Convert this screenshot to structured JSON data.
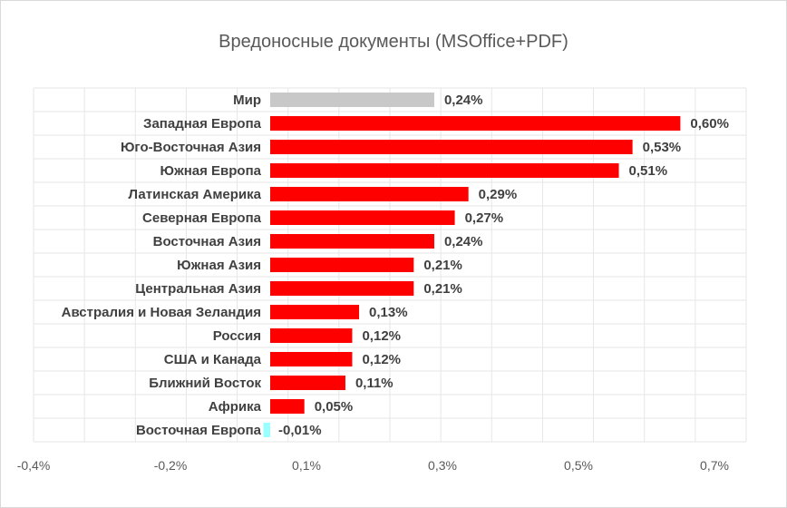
{
  "chart_data": {
    "type": "bar",
    "orientation": "horizontal",
    "title": "Вредоносные документы (MSOffice+PDF)",
    "categories": [
      "Мир",
      "Западная Европа",
      "Юго-Восточная Азия",
      "Южная Европа",
      "Латинская Америка",
      "Северная Европа",
      "Восточная Азия",
      "Южная Азия",
      "Центральная Азия",
      "Австралия и Новая Зеландия",
      "Россия",
      "США и Канада",
      "Ближний Восток",
      "Африка",
      "Восточная Европа"
    ],
    "values": [
      0.24,
      0.6,
      0.53,
      0.51,
      0.29,
      0.27,
      0.24,
      0.21,
      0.21,
      0.13,
      0.12,
      0.12,
      0.11,
      0.05,
      -0.01
    ],
    "value_labels": [
      "0,24%",
      "0,60%",
      "0,53%",
      "0,51%",
      "0,29%",
      "0,27%",
      "0,24%",
      "0,21%",
      "0,21%",
      "0,13%",
      "0,12%",
      "0,12%",
      "0,11%",
      "0,05%",
      "-0,01%"
    ],
    "bar_colors": [
      "#c8c8c8",
      "#ff0000",
      "#ff0000",
      "#ff0000",
      "#ff0000",
      "#ff0000",
      "#ff0000",
      "#ff0000",
      "#ff0000",
      "#ff0000",
      "#ff0000",
      "#ff0000",
      "#ff0000",
      "#ff0000",
      "#99ffff"
    ],
    "xlim": [
      -0.4,
      0.7
    ],
    "x_ticks": [
      -0.4,
      -0.2,
      0.1,
      0.3,
      0.5,
      0.7
    ],
    "x_tick_labels": [
      "-0,4%",
      "-0,2%",
      "0,1%",
      "0,3%",
      "0,5%",
      "0,7%"
    ],
    "grid": true,
    "legend": "none"
  }
}
